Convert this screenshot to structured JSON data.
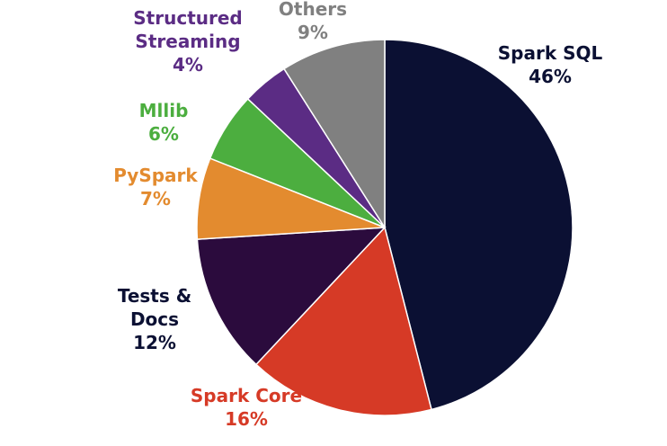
{
  "chart_data": {
    "type": "pie",
    "title": "",
    "slices": [
      {
        "name": "Spark SQL",
        "value": 46,
        "value_label": "46%",
        "color": "#0b1033"
      },
      {
        "name": "Spark Core",
        "value": 16,
        "value_label": "16%",
        "color": "#d63a26"
      },
      {
        "name": "Tests & Docs",
        "value": 12,
        "value_label": "12%",
        "color": "#2b0b3d"
      },
      {
        "name": "PySpark",
        "value": 7,
        "value_label": "7%",
        "color": "#e38b2f"
      },
      {
        "name": "Mllib",
        "value": 6,
        "value_label": "6%",
        "color": "#4cae3f"
      },
      {
        "name": "Structured Streaming",
        "value": 4,
        "value_label": "4%",
        "color": "#5b2c84"
      },
      {
        "name": "Others",
        "value": 9,
        "value_label": "9%",
        "color": "#808080"
      }
    ],
    "label_colors": {
      "Spark SQL": "#0b1033",
      "Spark Core": "#d63a26",
      "Tests & Docs": "#0b1033",
      "PySpark": "#e38b2f",
      "Mllib": "#4cae3f",
      "Structured Streaming": "#5b2c84",
      "Others": "#808080"
    },
    "start_angle_deg": 0,
    "direction": "clockwise",
    "legend": "none"
  }
}
